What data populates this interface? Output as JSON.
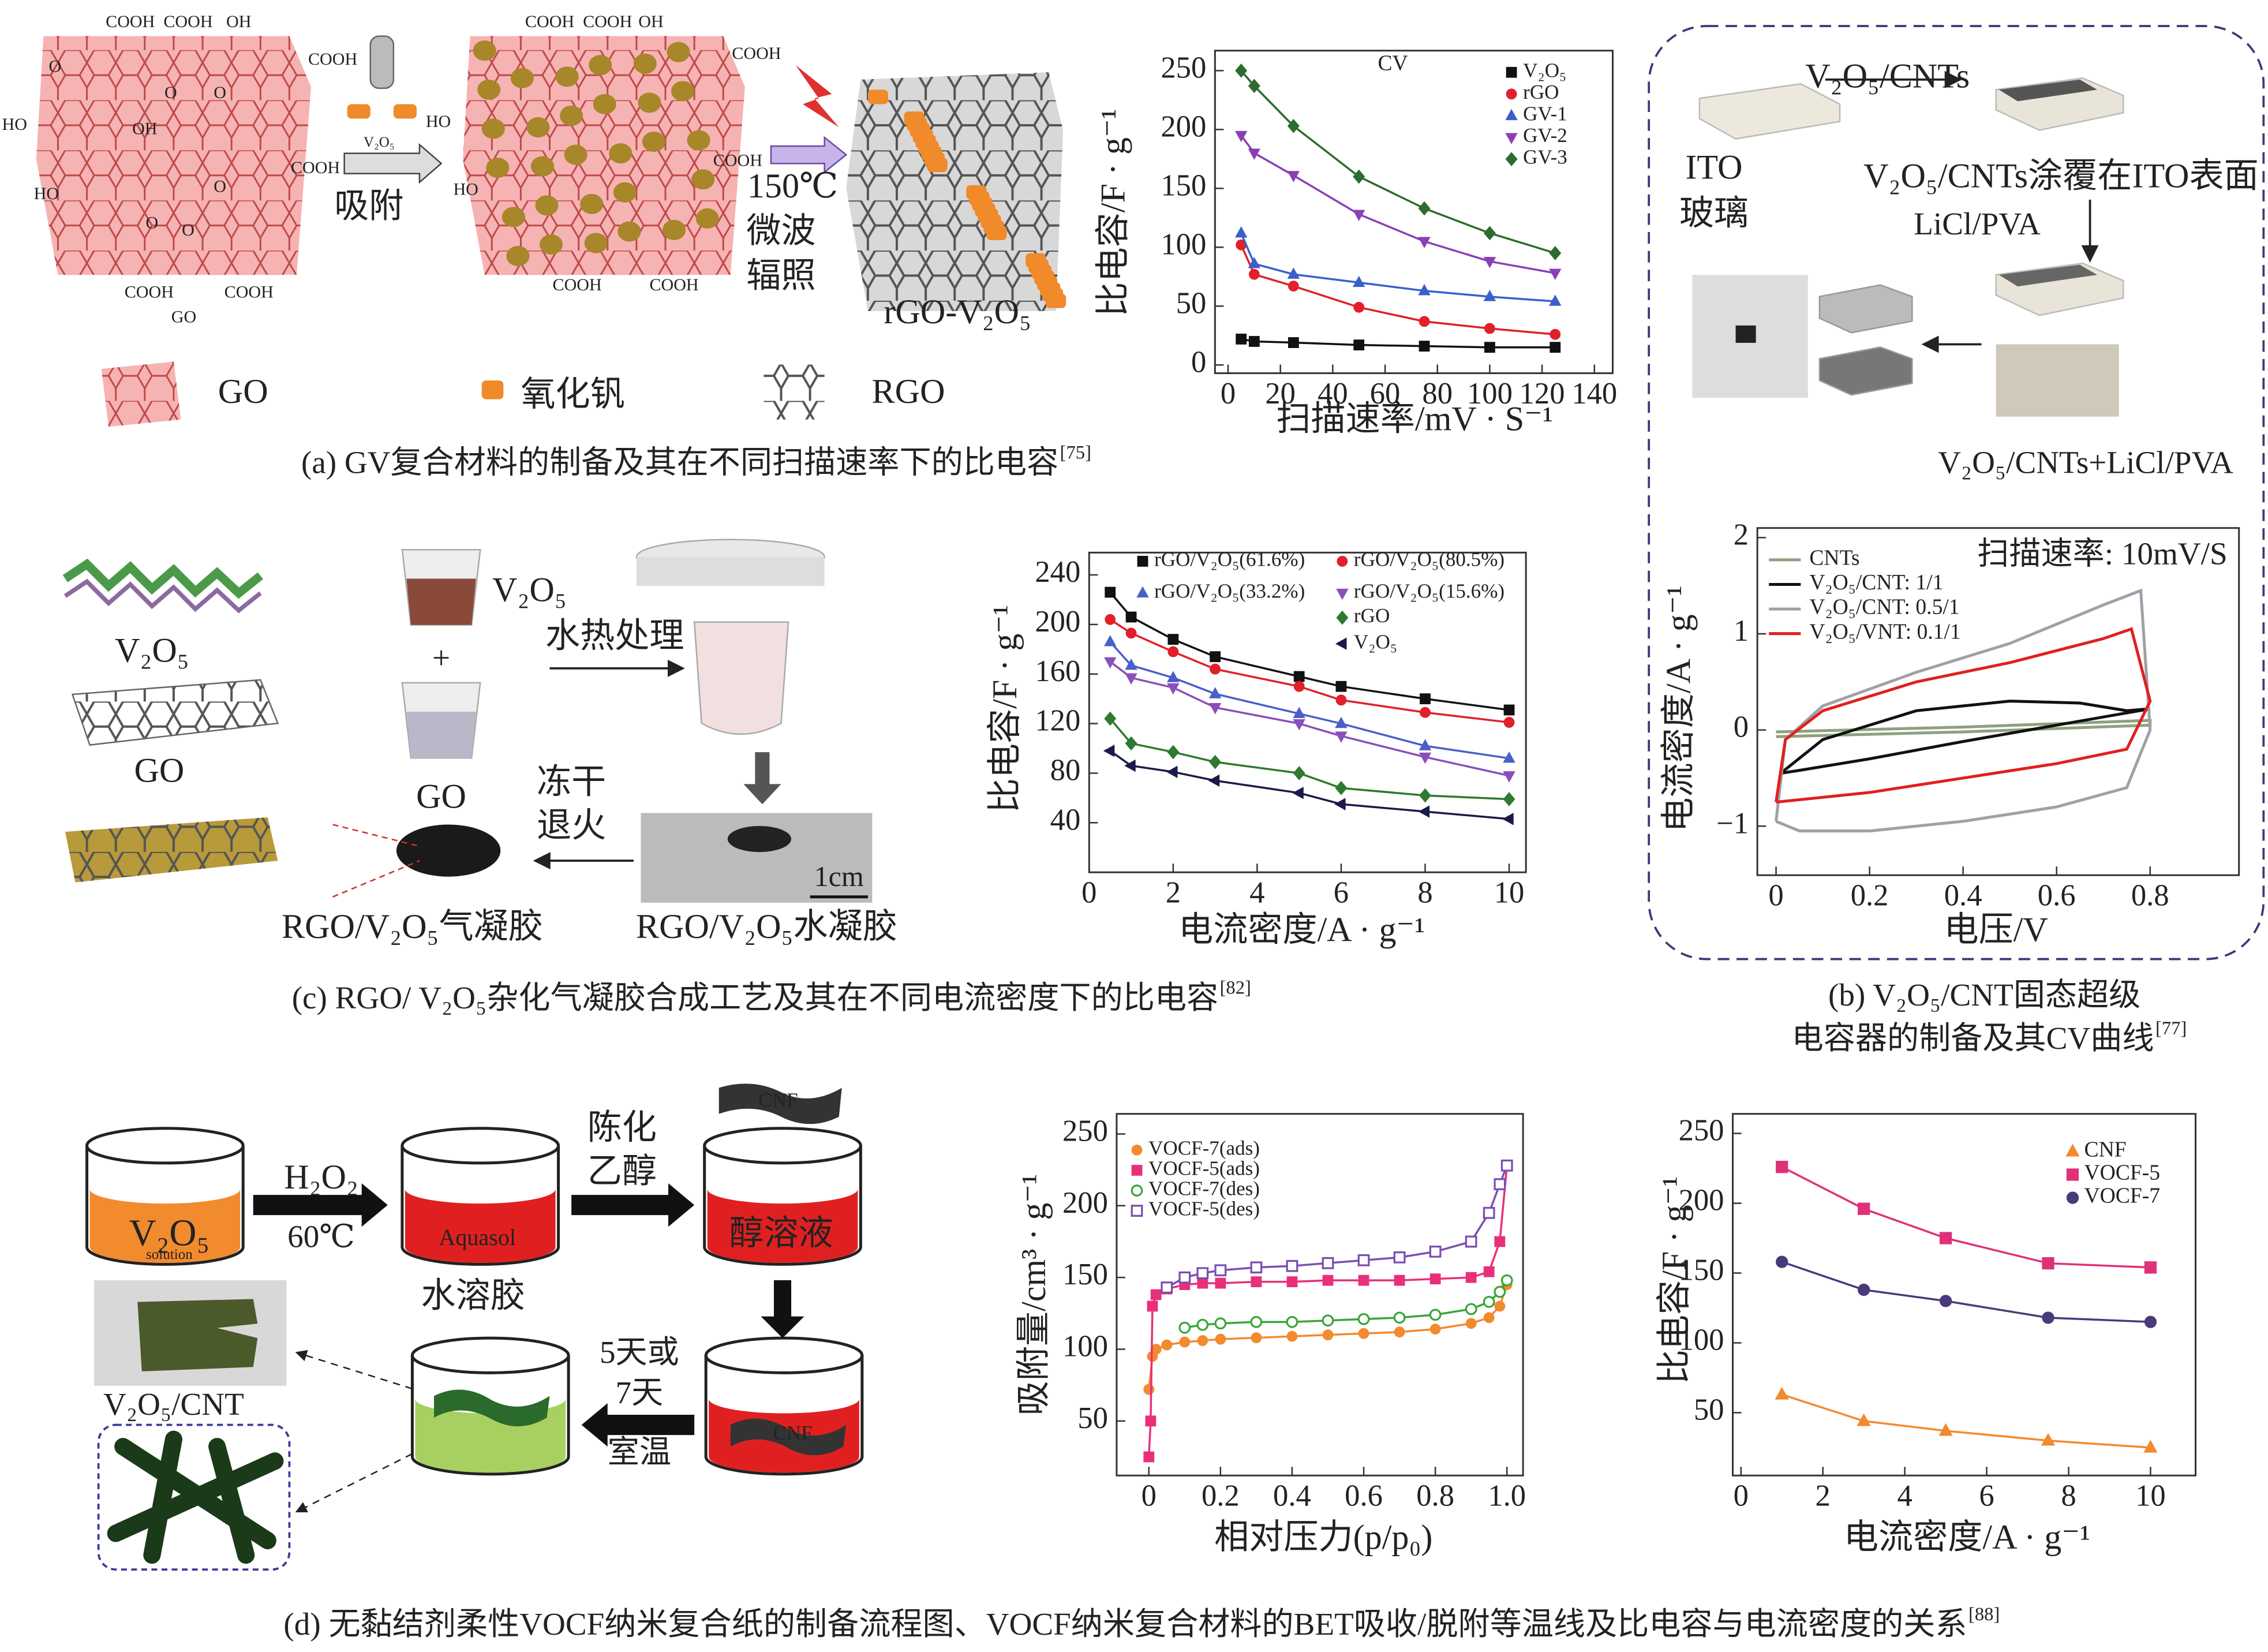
{
  "chart_data": [
    {
      "type": "line",
      "title": "CV",
      "ylabel": "比电容/F · g⁻¹",
      "xlabel": "扫描速率/mV · S⁻¹",
      "x": [
        5,
        10,
        25,
        50,
        75,
        100,
        125
      ],
      "xlim": [
        -5,
        147
      ],
      "ylim": [
        -7,
        267
      ],
      "xticks": [
        0,
        20,
        40,
        60,
        80,
        100,
        120,
        140
      ],
      "yticks": [
        0,
        50,
        100,
        150,
        200,
        250
      ],
      "legend": "upper right",
      "series": [
        {
          "name": "V₂O₅",
          "color": "#111111",
          "marker": "square",
          "values": [
            22,
            20,
            19,
            17,
            16,
            15,
            15
          ]
        },
        {
          "name": "rGO",
          "color": "#e0202a",
          "marker": "circle",
          "values": [
            102,
            77,
            67,
            49,
            37,
            31,
            26
          ]
        },
        {
          "name": "GV-1",
          "color": "#3a5fcd",
          "marker": "triangle-up",
          "values": [
            112,
            86,
            77,
            70,
            63,
            58,
            54
          ]
        },
        {
          "name": "GV-2",
          "color": "#8a3fb5",
          "marker": "triangle-down",
          "values": [
            195,
            180,
            161,
            128,
            105,
            88,
            78
          ]
        },
        {
          "name": "GV-3",
          "color": "#2e6b2e",
          "marker": "diamond",
          "values": [
            250,
            237,
            203,
            160,
            133,
            112,
            95
          ]
        }
      ]
    },
    {
      "type": "line",
      "ylabel": "比电容/F · g⁻¹",
      "xlabel": "电流密度/A · g⁻¹",
      "x": [
        0.5,
        1,
        2,
        3,
        5,
        6,
        8,
        10
      ],
      "xlim": [
        0,
        10.4
      ],
      "ylim": [
        0,
        258
      ],
      "xticks": [
        0,
        2,
        4,
        6,
        8,
        10
      ],
      "yticks": [
        40,
        80,
        120,
        160,
        200,
        240
      ],
      "legend": "upper left",
      "series": [
        {
          "name": "rGO/V₂O₅(61.6%)",
          "color": "#111111",
          "marker": "square",
          "values": [
            226,
            206,
            188,
            174,
            158,
            150,
            140,
            131
          ]
        },
        {
          "name": "rGO/V₂O₅(80.5%)",
          "color": "#e0202a",
          "marker": "circle",
          "values": [
            204,
            193,
            178,
            164,
            150,
            139,
            129,
            121
          ]
        },
        {
          "name": "rGO/V₂O₅(33.2%)",
          "color": "#4a5fc8",
          "marker": "triangle-up",
          "values": [
            186,
            167,
            157,
            144,
            128,
            120,
            102,
            92
          ]
        },
        {
          "name": "rGO/V₂O₅(15.6%)",
          "color": "#8a4fb8",
          "marker": "triangle-down",
          "values": [
            170,
            157,
            149,
            133,
            120,
            110,
            93,
            78
          ]
        },
        {
          "name": "rGO",
          "color": "#2e7a2e",
          "marker": "diamond",
          "values": [
            124,
            104,
            97,
            89,
            80,
            68,
            62,
            59
          ]
        },
        {
          "name": "V₂O₅",
          "color": "#1a1a4a",
          "marker": "triangle-left",
          "values": [
            98,
            86,
            81,
            74,
            64,
            55,
            49,
            43
          ]
        }
      ]
    },
    {
      "type": "line",
      "title": "扫描速率: 10mV/S",
      "ylabel": "电流密度/A · g⁻¹",
      "xlabel": "电压/V",
      "xlim": [
        -0.04,
        0.99
      ],
      "ylim": [
        -1.51,
        2.1
      ],
      "xticks": [
        0,
        0.2,
        0.4,
        0.6,
        0.8
      ],
      "yticks": [
        {
          "value": -1,
          "label": "−1"
        },
        0,
        1,
        2
      ],
      "legend": "upper left",
      "series": [
        {
          "name": "CNTs",
          "color": "#8fa07e",
          "x": [
            0,
            0.4,
            0.8,
            0.8,
            0.4,
            0
          ],
          "values": [
            -0.02,
            0.03,
            0.1,
            0.05,
            -0.02,
            -0.07
          ]
        },
        {
          "name": "V₂O₅/CNT: 1/1",
          "color": "#111111",
          "x": [
            0.01,
            0.1,
            0.3,
            0.5,
            0.65,
            0.75,
            0.8,
            0.6,
            0.4,
            0.2,
            0.05,
            0.01
          ],
          "values": [
            -0.45,
            -0.1,
            0.2,
            0.3,
            0.28,
            0.2,
            0.22,
            0.05,
            -0.12,
            -0.3,
            -0.42,
            -0.45
          ]
        },
        {
          "name": "V₂O₅/CNT: 0.5/1",
          "color": "#a0a0a8",
          "x": [
            0,
            0.02,
            0.1,
            0.3,
            0.5,
            0.7,
            0.78,
            0.8,
            0.75,
            0.6,
            0.4,
            0.2,
            0.05,
            0
          ],
          "values": [
            -0.95,
            -0.1,
            0.25,
            0.6,
            0.9,
            1.3,
            1.45,
            0,
            -0.6,
            -0.8,
            -0.95,
            -1.05,
            -1.05,
            -0.95
          ]
        },
        {
          "name": "V₂O₅/VNT: 0.1/1",
          "color": "#e02020",
          "x": [
            0,
            0.02,
            0.1,
            0.3,
            0.5,
            0.7,
            0.76,
            0.8,
            0.75,
            0.6,
            0.4,
            0.2,
            0
          ],
          "values": [
            -0.75,
            -0.1,
            0.2,
            0.5,
            0.7,
            0.95,
            1.05,
            0.3,
            -0.2,
            -0.35,
            -0.5,
            -0.65,
            -0.75
          ]
        }
      ]
    },
    {
      "type": "line",
      "ylabel": "吸附量/cm³ · g⁻¹",
      "xlabel": "相对压力(p/p₀)",
      "xlim": [
        -0.09,
        1.045
      ],
      "ylim": [
        12,
        264
      ],
      "xticks": [
        0,
        0.2,
        0.4,
        0.6,
        0.8,
        {
          "value": 1,
          "label": "1.0"
        }
      ],
      "yticks": [
        50,
        100,
        150,
        200,
        250
      ],
      "legend": "upper left",
      "series": [
        {
          "name": "VOCF-7(ads)",
          "color": "#f28a2e",
          "marker": "circle",
          "x": [
            0,
            0.01,
            0.02,
            0.05,
            0.1,
            0.15,
            0.2,
            0.3,
            0.4,
            0.5,
            0.6,
            0.7,
            0.8,
            0.9,
            0.95,
            0.98,
            1.0
          ],
          "values": [
            72,
            95,
            100,
            103,
            105,
            106,
            107,
            108,
            109,
            110,
            111,
            112,
            114,
            118,
            122,
            130,
            145
          ]
        },
        {
          "name": "VOCF-5(ads)",
          "color": "#e8307a",
          "marker": "square",
          "x": [
            0,
            0.005,
            0.01,
            0.02,
            0.05,
            0.1,
            0.15,
            0.2,
            0.3,
            0.4,
            0.5,
            0.6,
            0.7,
            0.8,
            0.9,
            0.95,
            0.98,
            1.0
          ],
          "values": [
            25,
            50,
            130,
            138,
            142,
            145,
            146,
            146,
            147,
            147,
            148,
            148,
            148,
            149,
            150,
            154,
            175,
            228
          ]
        },
        {
          "name": "VOCF-7(des)",
          "color": "#3aa53a",
          "marker": "circle-open",
          "x": [
            0.1,
            0.15,
            0.2,
            0.3,
            0.4,
            0.5,
            0.6,
            0.7,
            0.8,
            0.9,
            0.95,
            0.98,
            1.0
          ],
          "values": [
            115,
            117,
            118,
            119,
            119,
            120,
            121,
            122,
            124,
            128,
            133,
            140,
            148
          ]
        },
        {
          "name": "VOCF-5(des)",
          "color": "#7a4fb0",
          "marker": "square-open",
          "x": [
            0.05,
            0.1,
            0.15,
            0.2,
            0.3,
            0.4,
            0.5,
            0.6,
            0.7,
            0.8,
            0.9,
            0.95,
            0.98,
            1.0
          ],
          "values": [
            143,
            150,
            153,
            155,
            157,
            158,
            160,
            162,
            164,
            168,
            175,
            195,
            215,
            228
          ]
        }
      ]
    },
    {
      "type": "line",
      "ylabel": "比电容/F · g⁻¹",
      "xlabel": "电流密度/A · g⁻¹",
      "x": [
        1,
        3,
        5,
        7.5,
        10
      ],
      "xlim": [
        -0.2,
        11.1
      ],
      "ylim": [
        5,
        264
      ],
      "xticks": [
        0,
        2,
        4,
        6,
        8,
        10
      ],
      "yticks": [
        50,
        100,
        150,
        200,
        250
      ],
      "legend": "upper right",
      "series": [
        {
          "name": "CNF",
          "color": "#f28a2e",
          "marker": "triangle-up",
          "values": [
            63,
            44,
            37,
            30,
            25
          ]
        },
        {
          "name": "VOCF-5",
          "color": "#e0307a",
          "marker": "square",
          "values": [
            226,
            196,
            175,
            157,
            154
          ]
        },
        {
          "name": "VOCF-7",
          "color": "#4a3a7a",
          "marker": "circle",
          "values": [
            158,
            138,
            130,
            118,
            115
          ]
        }
      ]
    }
  ],
  "panels": {
    "a": {
      "sheet_labels": [
        "COOH",
        "COOH",
        "OH",
        "COOH",
        "O",
        "HO",
        "OH",
        "O",
        "O",
        "COOH",
        "HO",
        "O",
        "O",
        "O",
        "COOH",
        "COOH",
        "GO",
        "COOH",
        "COOH",
        "OH",
        "COOH",
        "HO",
        "HO",
        "COOH",
        "COOH",
        "COOH"
      ],
      "reagent": "V₂O₅",
      "step1": "吸附",
      "temp": "150℃",
      "step2": [
        "微波",
        "辐照"
      ],
      "product": "rGO-V₂O₅",
      "legend": [
        "GO",
        "氧化钒",
        "RGO"
      ],
      "caption": "(a) GV复合材料的制备及其在不同扫描速率下的比电容",
      "ref": "[75]"
    },
    "b": {
      "coating": "V₂O₅/CNTs",
      "substrate": [
        "ITO",
        "玻璃"
      ],
      "coated": "V₂O₅/CNTs涂覆在ITO表面",
      "electrolyte": "LiCl/PVA",
      "device": "V₂O₅/CNTs+LiCl/PVA",
      "caption": [
        "(b) V₂O₅/CNT固态超级",
        "电容器的制备及其CV曲线"
      ],
      "ref": "[77]"
    },
    "c": {
      "v2o5": "V₂O₅",
      "go": "GO",
      "beaker1": "V₂O₅",
      "plus": "+",
      "beaker2": "GO",
      "step1": "水热处理",
      "step2": [
        "冻干",
        "退火"
      ],
      "scale": "1cm",
      "aerogel": "RGO/V₂O₅气凝胶",
      "hydrogel": "RGO/V₂O₅水凝胶",
      "caption": "(c) RGO/ V₂O₅杂化气凝胶合成工艺及其在不同电流密度下的比电容",
      "ref": "[82]"
    },
    "d": {
      "beaker1": "V₂O₅",
      "beaker1_sub": "solution",
      "reagent": "H₂O₂",
      "temp": "60℃",
      "beaker2": "Aquasol",
      "sol": "水溶胶",
      "step2": [
        "陈化",
        "乙醇"
      ],
      "cnf": "CNF",
      "beaker3": "醇溶液",
      "beaker4": "CNF",
      "step3": [
        "5天或",
        "7天",
        "室温"
      ],
      "product": "V₂O₅/CNT",
      "caption": "(d) 无黏结剂柔性VOCF纳米复合纸的制备流程图、VOCF纳米复合材料的BET吸收/脱附等温线及比电容与电流密度的关系",
      "ref": "[88]"
    }
  }
}
